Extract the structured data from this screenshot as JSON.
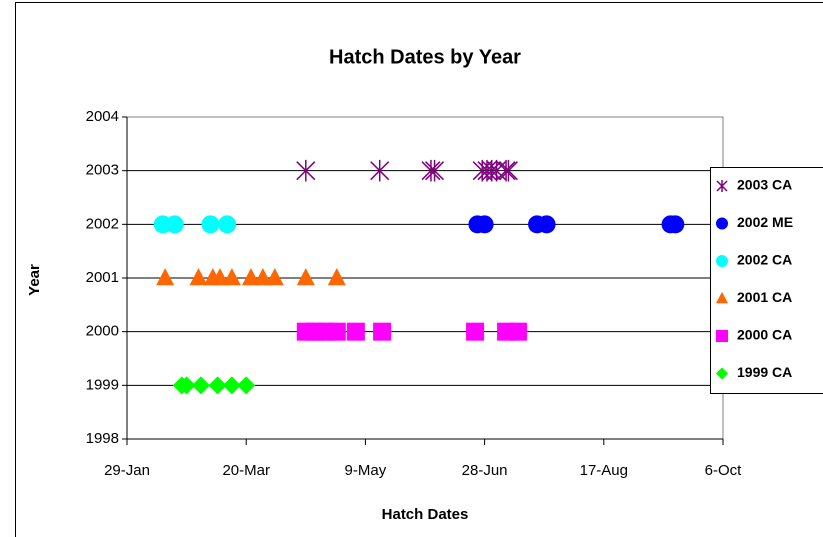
{
  "chart_data": {
    "type": "scatter",
    "title": "Hatch Dates by Year",
    "x_label": "Hatch Dates",
    "y_label": "Year",
    "xlim": [
      29,
      279
    ],
    "xticks": [
      {
        "value": 29,
        "label": "29-Jan"
      },
      {
        "value": 79,
        "label": "20-Mar"
      },
      {
        "value": 129,
        "label": "9-May"
      },
      {
        "value": 179,
        "label": "28-Jun"
      },
      {
        "value": 229,
        "label": "17-Aug"
      },
      {
        "value": 279,
        "label": "6-Oct"
      }
    ],
    "ylim": [
      1998,
      2004
    ],
    "yticks": [
      1998,
      1999,
      2000,
      2001,
      2002,
      2003,
      2004
    ],
    "grid": true,
    "series": [
      {
        "name": "2003 CA",
        "color": "#800080",
        "marker": "asterisk",
        "x": [
          104,
          135,
          156.5,
          158,
          178,
          180,
          182,
          184,
          188,
          189
        ],
        "values": [
          2003,
          2003,
          2003,
          2003,
          2003,
          2003,
          2003,
          2003,
          2003,
          2003
        ]
      },
      {
        "name": "2002 ME",
        "color": "#0000ff",
        "marker": "circle",
        "x": [
          176,
          179,
          201,
          205,
          257,
          259
        ],
        "values": [
          2002,
          2002,
          2002,
          2002,
          2002,
          2002
        ]
      },
      {
        "name": "2002 CA",
        "color": "#00ffff",
        "marker": "circle",
        "x": [
          44,
          49,
          64,
          71
        ],
        "values": [
          2002,
          2002,
          2002,
          2002
        ]
      },
      {
        "name": "2001 CA",
        "color": "#ff6600",
        "marker": "triangle",
        "x": [
          45,
          59,
          65,
          68,
          73,
          81,
          86,
          91,
          104,
          117
        ],
        "values": [
          2001,
          2001,
          2001,
          2001,
          2001,
          2001,
          2001,
          2001,
          2001,
          2001
        ]
      },
      {
        "name": "2000 CA",
        "color": "#ff00ff",
        "marker": "square",
        "x": [
          104,
          108,
          112,
          117,
          125,
          136,
          175,
          188,
          193
        ],
        "values": [
          2000,
          2000,
          2000,
          2000,
          2000,
          2000,
          2000,
          2000,
          2000
        ]
      },
      {
        "name": "1999 CA",
        "color": "#00ff00",
        "marker": "diamond",
        "x": [
          52,
          54,
          60,
          67,
          73,
          79
        ],
        "values": [
          1999,
          1999,
          1999,
          1999,
          1999,
          1999
        ]
      }
    ]
  }
}
